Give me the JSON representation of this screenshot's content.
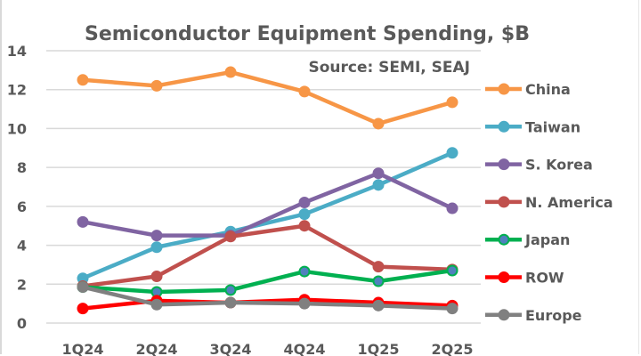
{
  "chart_data": {
    "type": "line",
    "title": "Semiconductor Equipment Spending, $B",
    "subtitle": "Source: SEMI, SEAJ",
    "xlabel": "",
    "ylabel": "",
    "categories": [
      "1Q24",
      "2Q24",
      "3Q24",
      "4Q24",
      "1Q25",
      "2Q25"
    ],
    "ylim": [
      0,
      14
    ],
    "yticks": [
      0,
      2,
      4,
      6,
      8,
      10,
      12,
      14
    ],
    "ytick_labels": [
      "0",
      "2",
      "4",
      "6",
      "8",
      "10",
      "12",
      "14"
    ],
    "grid": true,
    "legend_position": "right",
    "series": [
      {
        "name": "China",
        "color": "#f79646",
        "marker_color": "#f79646",
        "values": [
          12.5,
          12.2,
          12.9,
          11.9,
          10.25,
          11.35
        ]
      },
      {
        "name": "Taiwan",
        "color": "#4bacc6",
        "marker_color": "#4bacc6",
        "values": [
          2.3,
          3.9,
          4.7,
          5.6,
          7.1,
          8.75
        ]
      },
      {
        "name": "S. Korea",
        "color": "#8064a2",
        "marker_color": "#8064a2",
        "values": [
          5.2,
          4.5,
          4.5,
          6.2,
          7.7,
          5.9
        ]
      },
      {
        "name": "N. America",
        "color": "#c0504d",
        "marker_color": "#c0504d",
        "values": [
          1.9,
          2.4,
          4.45,
          5.0,
          2.9,
          2.75
        ]
      },
      {
        "name": "Japan",
        "color": "#00b050",
        "marker_color": "#4f81bd",
        "values": [
          1.85,
          1.6,
          1.7,
          2.65,
          2.15,
          2.7
        ]
      },
      {
        "name": "ROW",
        "color": "#ff0000",
        "marker_color": "#ff0000",
        "values": [
          0.75,
          1.15,
          1.05,
          1.2,
          1.05,
          0.9
        ]
      },
      {
        "name": "Europe",
        "color": "#808080",
        "marker_color": "#808080",
        "values": [
          1.85,
          0.95,
          1.05,
          1.0,
          0.9,
          0.75
        ]
      }
    ]
  }
}
